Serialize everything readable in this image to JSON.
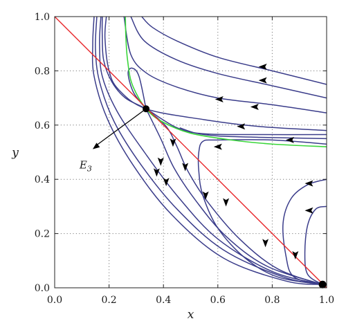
{
  "chart_data": {
    "type": "phase-portrait",
    "title": "",
    "xlabel": "x",
    "ylabel": "y",
    "xlim": [
      0.0,
      1.0
    ],
    "ylim": [
      0.0,
      1.0
    ],
    "xticks": [
      "0.0",
      "0.2",
      "0.4",
      "0.6",
      "0.8",
      "1.0"
    ],
    "yticks": [
      "0.0",
      "0.2",
      "0.4",
      "0.6",
      "0.8",
      "1.0"
    ],
    "grid": true,
    "colors": {
      "trajectory": "#3a3c8a",
      "line": "#e8262a",
      "nullcline": "#3ad63a",
      "point": "#000000",
      "grid": "#7a7a7a"
    },
    "annotation": {
      "label_main": "E",
      "label_sub": "3",
      "points_to": [
        0.336,
        0.66
      ],
      "text_at": [
        0.155,
        0.455
      ]
    },
    "equilibria": [
      {
        "x": 0.336,
        "y": 0.66,
        "name": "E3"
      },
      {
        "x": 0.985,
        "y": 0.012,
        "name": ""
      }
    ],
    "red_line": [
      [
        0.0,
        1.0
      ],
      [
        1.0,
        0.0
      ]
    ],
    "green_curve": [
      [
        0.26,
        1.0
      ],
      [
        0.262,
        0.92
      ],
      [
        0.268,
        0.84
      ],
      [
        0.285,
        0.75
      ],
      [
        0.336,
        0.66
      ],
      [
        0.4,
        0.61
      ],
      [
        0.5,
        0.57
      ],
      [
        0.65,
        0.545
      ],
      [
        0.8,
        0.53
      ],
      [
        1.0,
        0.52
      ]
    ],
    "trajectories": [
      {
        "points": [
          [
            0.336,
            0.66
          ],
          [
            0.29,
            0.72
          ],
          [
            0.27,
            0.79
          ],
          [
            0.285,
            0.81
          ],
          [
            0.31,
            0.78
          ],
          [
            0.336,
            0.66
          ]
        ]
      },
      {
        "points": [
          [
            0.19,
            1.0
          ],
          [
            0.185,
            0.92
          ],
          [
            0.2,
            0.8
          ],
          [
            0.236,
            0.73
          ],
          [
            0.336,
            0.66
          ],
          [
            0.55,
            0.62
          ],
          [
            0.75,
            0.595
          ],
          [
            1.0,
            0.58
          ]
        ]
      },
      {
        "points": [
          [
            1.0,
            0.565
          ],
          [
            0.75,
            0.565
          ],
          [
            0.55,
            0.568
          ],
          [
            0.45,
            0.59
          ],
          [
            0.336,
            0.66
          ],
          [
            0.26,
            0.7
          ],
          [
            0.21,
            0.76
          ],
          [
            0.18,
            0.84
          ],
          [
            0.175,
            0.93
          ],
          [
            0.175,
            1.0
          ]
        ]
      },
      {
        "points": [
          [
            0.336,
            0.66
          ],
          [
            0.41,
            0.595
          ],
          [
            0.45,
            0.52
          ],
          [
            0.49,
            0.43
          ],
          [
            0.56,
            0.32
          ],
          [
            0.68,
            0.18
          ],
          [
            0.82,
            0.07
          ],
          [
            0.985,
            0.012
          ]
        ]
      },
      {
        "points": [
          [
            0.336,
            0.66
          ],
          [
            0.39,
            0.55
          ],
          [
            0.44,
            0.44
          ],
          [
            0.52,
            0.32
          ],
          [
            0.63,
            0.19
          ],
          [
            0.78,
            0.08
          ],
          [
            0.985,
            0.012
          ]
        ]
      },
      {
        "points": [
          [
            0.17,
            1.0
          ],
          [
            0.165,
            0.9
          ],
          [
            0.175,
            0.78
          ],
          [
            0.23,
            0.65
          ],
          [
            0.33,
            0.5
          ],
          [
            0.45,
            0.34
          ],
          [
            0.6,
            0.18
          ],
          [
            0.8,
            0.06
          ],
          [
            0.985,
            0.012
          ]
        ]
      },
      {
        "points": [
          [
            0.155,
            1.0
          ],
          [
            0.15,
            0.88
          ],
          [
            0.165,
            0.76
          ],
          [
            0.22,
            0.61
          ],
          [
            0.32,
            0.45
          ],
          [
            0.45,
            0.29
          ],
          [
            0.62,
            0.14
          ],
          [
            0.84,
            0.04
          ],
          [
            0.985,
            0.012
          ]
        ]
      },
      {
        "points": [
          [
            0.145,
            1.0
          ],
          [
            0.14,
            0.9
          ],
          [
            0.145,
            0.78
          ],
          [
            0.195,
            0.62
          ],
          [
            0.29,
            0.45
          ],
          [
            0.43,
            0.27
          ],
          [
            0.62,
            0.11
          ],
          [
            0.85,
            0.025
          ],
          [
            0.985,
            0.012
          ]
        ]
      },
      {
        "points": [
          [
            1.0,
            0.53
          ],
          [
            0.8,
            0.545
          ],
          [
            0.6,
            0.545
          ],
          [
            0.545,
            0.54
          ],
          [
            0.53,
            0.5
          ],
          [
            0.53,
            0.43
          ],
          [
            0.545,
            0.34
          ],
          [
            0.6,
            0.22
          ],
          [
            0.7,
            0.11
          ],
          [
            0.82,
            0.04
          ],
          [
            0.985,
            0.012
          ]
        ]
      },
      {
        "points": [
          [
            1.0,
            0.4
          ],
          [
            0.93,
            0.38
          ],
          [
            0.87,
            0.33
          ],
          [
            0.84,
            0.24
          ],
          [
            0.85,
            0.12
          ],
          [
            0.88,
            0.04
          ],
          [
            0.985,
            0.012
          ]
        ]
      },
      {
        "points": [
          [
            1.0,
            0.3
          ],
          [
            0.96,
            0.29
          ],
          [
            0.93,
            0.23
          ],
          [
            0.92,
            0.13
          ],
          [
            0.93,
            0.05
          ],
          [
            0.985,
            0.012
          ]
        ]
      },
      {
        "points": [
          [
            1.0,
            0.75
          ],
          [
            0.8,
            0.8
          ],
          [
            0.6,
            0.85
          ],
          [
            0.45,
            0.91
          ],
          [
            0.36,
            0.96
          ],
          [
            0.32,
            1.0
          ]
        ]
      },
      {
        "points": [
          [
            1.0,
            0.7
          ],
          [
            0.8,
            0.745
          ],
          [
            0.6,
            0.79
          ],
          [
            0.45,
            0.84
          ],
          [
            0.33,
            0.91
          ],
          [
            0.28,
            1.0
          ]
        ]
      },
      {
        "points": [
          [
            1.0,
            0.645
          ],
          [
            0.8,
            0.675
          ],
          [
            0.6,
            0.7
          ],
          [
            0.45,
            0.74
          ],
          [
            0.34,
            0.79
          ],
          [
            0.28,
            0.86
          ],
          [
            0.255,
            1.0
          ]
        ]
      },
      {
        "points": [
          [
            1.0,
            0.55
          ],
          [
            0.75,
            0.555
          ],
          [
            0.6,
            0.56
          ],
          [
            0.52,
            0.57
          ],
          [
            0.46,
            0.59
          ]
        ]
      }
    ],
    "arrows": [
      {
        "x": 0.765,
        "y": 0.815,
        "dir": "left"
      },
      {
        "x": 0.765,
        "y": 0.765,
        "dir": "left"
      },
      {
        "x": 0.605,
        "y": 0.695,
        "dir": "left"
      },
      {
        "x": 0.735,
        "y": 0.667,
        "dir": "left"
      },
      {
        "x": 0.685,
        "y": 0.595,
        "dir": "left"
      },
      {
        "x": 0.865,
        "y": 0.545,
        "dir": "left"
      },
      {
        "x": 0.6,
        "y": 0.52,
        "dir": "left"
      },
      {
        "x": 0.435,
        "y": 0.535,
        "dir": "down"
      },
      {
        "x": 0.48,
        "y": 0.445,
        "dir": "down"
      },
      {
        "x": 0.39,
        "y": 0.465,
        "dir": "down"
      },
      {
        "x": 0.41,
        "y": 0.39,
        "dir": "down"
      },
      {
        "x": 0.375,
        "y": 0.425,
        "dir": "down"
      },
      {
        "x": 0.555,
        "y": 0.34,
        "dir": "down"
      },
      {
        "x": 0.63,
        "y": 0.315,
        "dir": "down"
      },
      {
        "x": 0.775,
        "y": 0.165,
        "dir": "down"
      },
      {
        "x": 0.935,
        "y": 0.385,
        "dir": "left"
      },
      {
        "x": 0.935,
        "y": 0.285,
        "dir": "left"
      },
      {
        "x": 0.885,
        "y": 0.12,
        "dir": "down"
      }
    ]
  }
}
